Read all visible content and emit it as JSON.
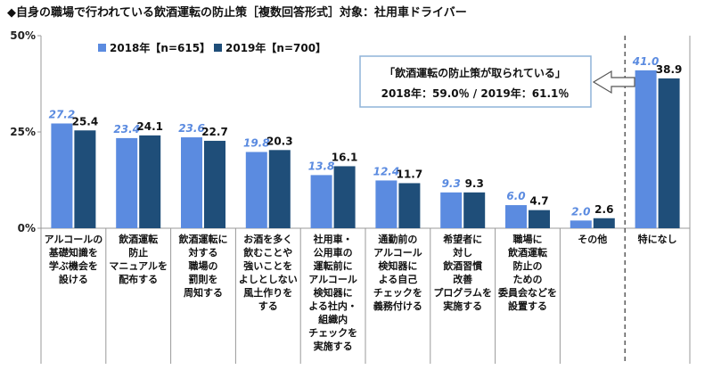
{
  "chart_data": {
    "type": "bar",
    "title": "◆自身の職場で行われている飲酒運転の防止策［複数回答形式］対象：社用車ドライバー",
    "ylim": [
      0,
      50
    ],
    "yticks": [
      "0%",
      "25%",
      "50%"
    ],
    "ytick_values": [
      0,
      25,
      50
    ],
    "categories": [
      [
        "アルコールの",
        "基礎知識を",
        "学ぶ機会を",
        "設ける"
      ],
      [
        "飲酒運転",
        "防止",
        "マニュアルを",
        "配布する"
      ],
      [
        "飲酒運転に",
        "対する",
        "職場の",
        "罰則を",
        "周知する"
      ],
      [
        "お酒を多く",
        "飲むことや",
        "強いことを",
        "よしとしない",
        "風土作りを",
        "する"
      ],
      [
        "社用車・",
        "公用車の",
        "運転前に",
        "アルコール",
        "検知器に",
        "よる社内・",
        "組織内",
        "チェックを",
        "実施する"
      ],
      [
        "通勤前の",
        "アルコール",
        "検知器に",
        "よる自己",
        "チェックを",
        "義務付ける"
      ],
      [
        "希望者に",
        "対し",
        "飲酒習慣",
        "改善",
        "プログラムを",
        "実施する"
      ],
      [
        "職場に",
        "飲酒運転",
        "防止の",
        "ための",
        "委員会などを",
        "設置する"
      ],
      [
        "その他"
      ],
      [
        "特になし"
      ]
    ],
    "series": [
      {
        "name": "2018年【n=615】",
        "color": "#5b8be0",
        "values": [
          27.2,
          23.4,
          23.6,
          19.8,
          13.8,
          12.4,
          9.3,
          6.0,
          2.0,
          41.0
        ]
      },
      {
        "name": "2019年【n=700】",
        "color": "#1f4e79",
        "values": [
          25.4,
          24.1,
          22.7,
          20.3,
          16.1,
          11.7,
          9.3,
          4.7,
          2.6,
          38.9
        ]
      }
    ],
    "legend_position": "top-left",
    "grid": false,
    "callout": {
      "line1": "「飲酒運転の防止策が取られている」",
      "line2": "2018年：59.0％ / 2019年：61.1％"
    }
  }
}
